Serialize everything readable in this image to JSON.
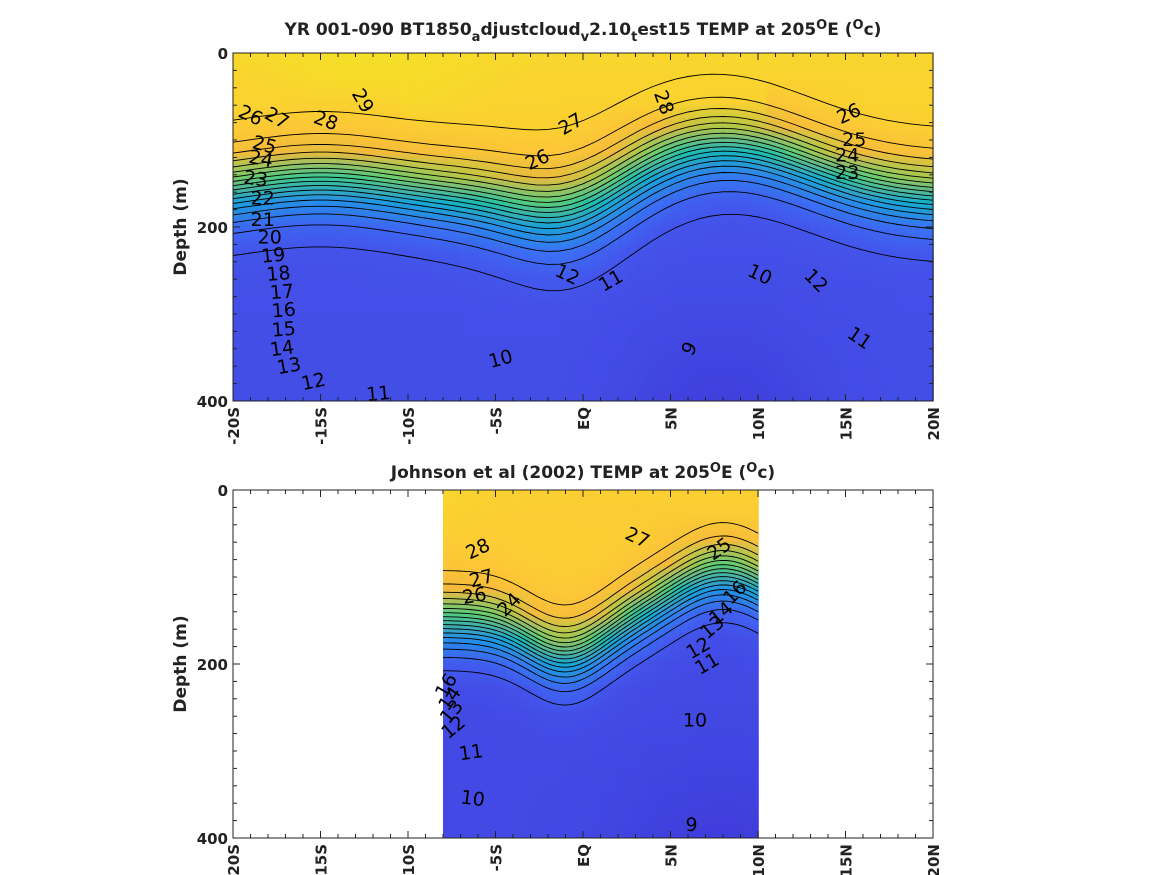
{
  "palette": [
    "#3f3ddb",
    "#4452ea",
    "#3a72f7",
    "#2391e6",
    "#13adcf",
    "#22c2a6",
    "#62cd72",
    "#b2c646",
    "#f4b93b",
    "#fdc737",
    "#f4e523"
  ],
  "chart_data": [
    {
      "type": "heatmap",
      "title_parts": [
        "YR 001-090 BT1850",
        "a",
        "djustcloud",
        "v",
        "2.10",
        "t",
        "est15 TEMP at 205",
        "O",
        "E (",
        "O",
        "c)"
      ],
      "ylabel": "Depth (m)",
      "xticks": [
        "-20S",
        "-15S",
        "-10S",
        "-5S",
        "EQ",
        "5N",
        "10N",
        "15N",
        "20N"
      ],
      "yticks": [
        "0",
        "200",
        "400"
      ],
      "x_range": [
        -20,
        20
      ],
      "y_range": [
        0,
        400
      ],
      "y_reversed": true,
      "data_x_range": [
        -20,
        20
      ],
      "mixed_layer_temp": 28.5,
      "deep_temp": 10.5,
      "cold_core_temp": 9,
      "contour_labels": [
        {
          "t": "29",
          "x": -12.6,
          "y": 55,
          "r": 60
        },
        {
          "t": "28",
          "x": -14.7,
          "y": 78,
          "r": 20
        },
        {
          "t": "27",
          "x": -17.5,
          "y": 75,
          "r": 30
        },
        {
          "t": "26",
          "x": -19,
          "y": 72,
          "r": 25
        },
        {
          "t": "25",
          "x": -18.2,
          "y": 106,
          "r": 15
        },
        {
          "t": "24",
          "x": -18.4,
          "y": 122,
          "r": 12
        },
        {
          "t": "23",
          "x": -18.7,
          "y": 145,
          "r": 8
        },
        {
          "t": "22",
          "x": -18.3,
          "y": 167,
          "r": 0
        },
        {
          "t": "21",
          "x": -18.3,
          "y": 192,
          "r": 0
        },
        {
          "t": "20",
          "x": -17.9,
          "y": 212,
          "r": 0
        },
        {
          "t": "19",
          "x": -17.7,
          "y": 233,
          "r": -5
        },
        {
          "t": "18",
          "x": -17.4,
          "y": 254,
          "r": -5
        },
        {
          "t": "17",
          "x": -17.2,
          "y": 275,
          "r": -5
        },
        {
          "t": "16",
          "x": -17.1,
          "y": 296,
          "r": -5
        },
        {
          "t": "15",
          "x": -17.1,
          "y": 318,
          "r": -5
        },
        {
          "t": "14",
          "x": -17.2,
          "y": 340,
          "r": -8
        },
        {
          "t": "13",
          "x": -16.8,
          "y": 360,
          "r": -10
        },
        {
          "t": "12",
          "x": -15.4,
          "y": 378,
          "r": -12
        },
        {
          "t": "11",
          "x": -11.7,
          "y": 392,
          "r": -5
        },
        {
          "t": "10",
          "x": -4.7,
          "y": 352,
          "r": -15
        },
        {
          "t": "9",
          "x": 6.1,
          "y": 340,
          "r": -60
        },
        {
          "t": "28",
          "x": 4.6,
          "y": 57,
          "r": 70
        },
        {
          "t": "27",
          "x": -0.7,
          "y": 82,
          "r": -30
        },
        {
          "t": "26",
          "x": -2.6,
          "y": 123,
          "r": -25
        },
        {
          "t": "26",
          "x": 15.2,
          "y": 70,
          "r": -25
        },
        {
          "t": "25",
          "x": 15.5,
          "y": 100,
          "r": 0
        },
        {
          "t": "24",
          "x": 15.1,
          "y": 118,
          "r": 0
        },
        {
          "t": "23",
          "x": 15.1,
          "y": 138,
          "r": 0
        },
        {
          "t": "12",
          "x": -0.9,
          "y": 255,
          "r": 25
        },
        {
          "t": "11",
          "x": 1.6,
          "y": 262,
          "r": -30
        },
        {
          "t": "10",
          "x": 10.1,
          "y": 255,
          "r": 25
        },
        {
          "t": "12",
          "x": 13.3,
          "y": 262,
          "r": 45
        },
        {
          "t": "11",
          "x": 15.8,
          "y": 328,
          "r": 35
        }
      ]
    },
    {
      "type": "heatmap",
      "title_parts": [
        "Johnson et al (2002) TEMP at 205",
        "O",
        "E (",
        "O",
        "c)"
      ],
      "ylabel": "Depth (m)",
      "xticks": [
        "-20S",
        "-15S",
        "-10S",
        "-5S",
        "EQ",
        "5N",
        "10N",
        "15N",
        "20N"
      ],
      "yticks": [
        "0",
        "200",
        "400"
      ],
      "x_range": [
        -20,
        20
      ],
      "y_range": [
        0,
        400
      ],
      "y_reversed": true,
      "data_x_range": [
        -8,
        10
      ],
      "mixed_layer_temp": 28,
      "deep_temp": 10,
      "cold_core_temp": 8.8,
      "contour_labels": [
        {
          "t": "28",
          "x": -6,
          "y": 68,
          "r": -25
        },
        {
          "t": "27",
          "x": -5.8,
          "y": 102,
          "r": -15
        },
        {
          "t": "26",
          "x": -6.2,
          "y": 122,
          "r": -10
        },
        {
          "t": "27",
          "x": 3.1,
          "y": 55,
          "r": 25
        },
        {
          "t": "25",
          "x": 7.8,
          "y": 68,
          "r": -35
        },
        {
          "t": "16",
          "x": -7.8,
          "y": 225,
          "r": -60
        },
        {
          "t": "14",
          "x": -7.6,
          "y": 240,
          "r": -55
        },
        {
          "t": "13",
          "x": -7.5,
          "y": 255,
          "r": -50
        },
        {
          "t": "12",
          "x": -7.4,
          "y": 273,
          "r": -40
        },
        {
          "t": "11",
          "x": -6.4,
          "y": 302,
          "r": -8
        },
        {
          "t": "10",
          "x": -6.3,
          "y": 355,
          "r": 8
        },
        {
          "t": "9",
          "x": 6.2,
          "y": 385,
          "r": 0
        },
        {
          "t": "10",
          "x": 6.4,
          "y": 265,
          "r": 0
        },
        {
          "t": "11",
          "x": 7.1,
          "y": 200,
          "r": -30
        },
        {
          "t": "12",
          "x": 6.6,
          "y": 182,
          "r": -30
        },
        {
          "t": "13",
          "x": 7.4,
          "y": 158,
          "r": -40
        },
        {
          "t": "14",
          "x": 7.9,
          "y": 142,
          "r": -40
        },
        {
          "t": "16",
          "x": 8.7,
          "y": 118,
          "r": -45
        },
        {
          "t": "24",
          "x": -4.2,
          "y": 132,
          "r": -45
        }
      ]
    }
  ]
}
